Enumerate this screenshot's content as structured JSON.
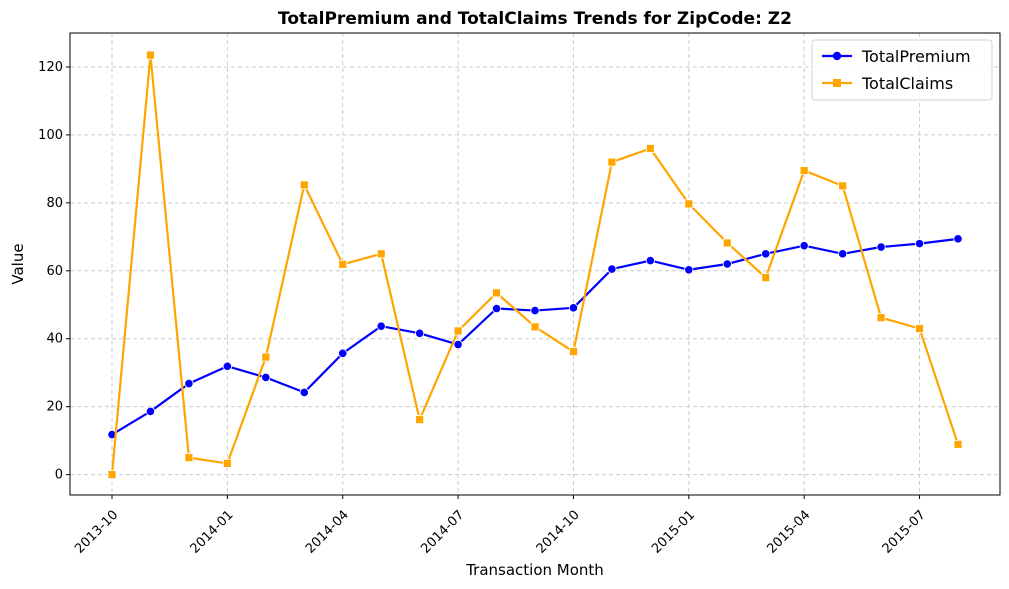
{
  "chart_data": {
    "type": "line",
    "title": "TotalPremium and TotalClaims Trends for ZipCode: Z2",
    "xlabel": "Transaction Month",
    "ylabel": "Value",
    "ylim": [
      -6,
      130
    ],
    "yticks": [
      0,
      20,
      40,
      60,
      80,
      100,
      120
    ],
    "xtick_labels": [
      "2013-10",
      "2014-01",
      "2014-04",
      "2014-07",
      "2014-10",
      "2015-01",
      "2015-04",
      "2015-07"
    ],
    "x": [
      "2013-10",
      "2013-11",
      "2013-12",
      "2014-01",
      "2014-02",
      "2014-03",
      "2014-04",
      "2014-05",
      "2014-06",
      "2014-07",
      "2014-08",
      "2014-09",
      "2014-10",
      "2014-11",
      "2014-12",
      "2015-01",
      "2015-02",
      "2015-03",
      "2015-04",
      "2015-05",
      "2015-06",
      "2015-07",
      "2015-08"
    ],
    "grid": true,
    "legend_position": "top-right",
    "series": [
      {
        "name": "TotalPremium",
        "color": "#0000ff",
        "marker": "circle",
        "values": [
          11.8,
          18.6,
          26.8,
          31.9,
          28.6,
          24.2,
          35.7,
          43.7,
          41.6,
          38.3,
          48.9,
          48.3,
          49.1,
          60.5,
          63.0,
          60.3,
          62.0,
          65.0,
          67.4,
          65.0,
          67.0,
          68.0,
          69.4
        ]
      },
      {
        "name": "TotalClaims",
        "color": "#ffa500",
        "marker": "square",
        "values": [
          0.0,
          123.5,
          5.0,
          3.3,
          34.6,
          85.3,
          61.9,
          65.0,
          16.2,
          42.3,
          53.5,
          43.5,
          36.2,
          92.0,
          96.0,
          79.7,
          68.2,
          58.0,
          89.5,
          85.0,
          46.2,
          43.0,
          8.9
        ]
      }
    ]
  }
}
